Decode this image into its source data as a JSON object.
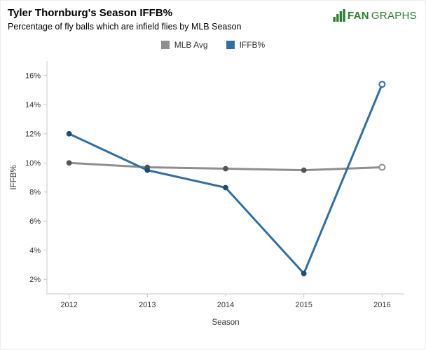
{
  "header": {
    "title": "Tyler Thornburg's Season IFFB%",
    "subtitle": "Percentage of fly balls which are infield flies by MLB Season"
  },
  "logo": {
    "bold": "FAN",
    "light": "GRAPHS",
    "color": "#2e7d32"
  },
  "chart_data": {
    "type": "line",
    "title": "Tyler Thornburg's Season IFFB%",
    "subtitle": "Percentage of fly balls which are infield flies by MLB Season",
    "xlabel": "Season",
    "ylabel": "IFFB%",
    "categories": [
      "2012",
      "2013",
      "2014",
      "2015",
      "2016"
    ],
    "series": [
      {
        "name": "MLB Avg",
        "color": "#8e8e8e",
        "marker_color": "#555555",
        "values": [
          10.0,
          9.7,
          9.6,
          9.5,
          9.7
        ],
        "hollow_last": true
      },
      {
        "name": "IFFB%",
        "color": "#336e9e",
        "marker_color": "#1d4d74",
        "values": [
          12.0,
          9.5,
          8.3,
          2.4,
          15.4
        ],
        "hollow_last": true
      }
    ],
    "ylim": [
      1,
      17
    ],
    "yticks": [
      2,
      4,
      6,
      8,
      10,
      12,
      14,
      16
    ],
    "ytick_suffix": "%",
    "grid": false,
    "legend_position": "top"
  }
}
